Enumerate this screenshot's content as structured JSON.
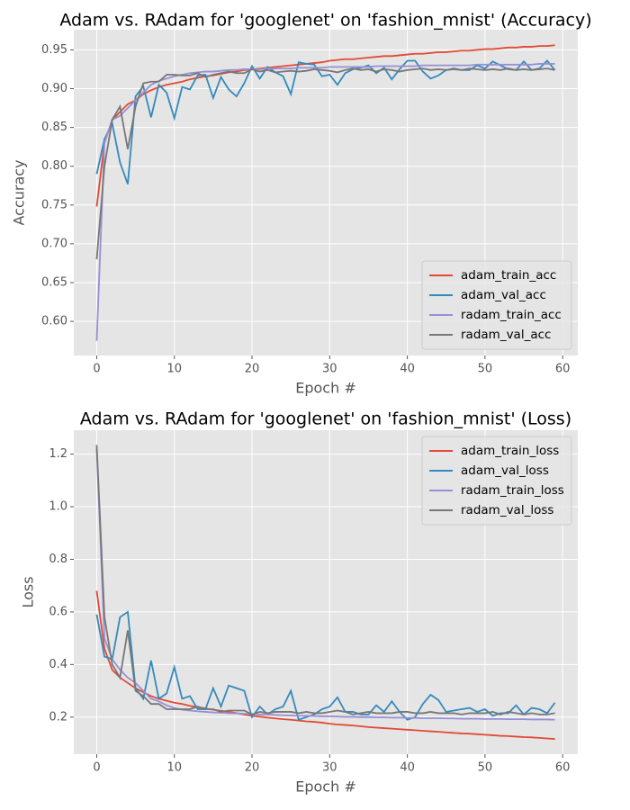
{
  "chart_data": [
    {
      "type": "line",
      "title": "Adam vs. RAdam for 'googlenet' on 'fashion_mnist' (Accuracy)",
      "x_label": "Epoch #",
      "y_label": "Accuracy",
      "x": [
        0,
        1,
        2,
        3,
        4,
        5,
        6,
        7,
        8,
        9,
        10,
        11,
        12,
        13,
        14,
        15,
        16,
        17,
        18,
        19,
        20,
        21,
        22,
        23,
        24,
        25,
        26,
        27,
        28,
        29,
        30,
        31,
        32,
        33,
        34,
        35,
        36,
        37,
        38,
        39,
        40,
        41,
        42,
        43,
        44,
        45,
        46,
        47,
        48,
        49,
        50,
        51,
        52,
        53,
        54,
        55,
        56,
        57,
        58,
        59
      ],
      "xlim": [
        -2.95,
        61.95
      ],
      "xticks": [
        0,
        10,
        20,
        30,
        40,
        50,
        60
      ],
      "ylim": [
        0.556,
        0.976
      ],
      "yticks": [
        {
          "value": 0.6,
          "label": "0.60"
        },
        0.65,
        {
          "value": 0.7,
          "label": "0.70"
        },
        0.75,
        {
          "value": 0.8,
          "label": "0.80"
        },
        0.85,
        {
          "value": 0.9,
          "label": "0.90"
        },
        0.95
      ],
      "grid": true,
      "legend": "lower right",
      "series": [
        {
          "name": "adam_train_acc",
          "color": "#e24a33",
          "values": [
            0.748,
            0.83,
            0.86,
            0.87,
            0.88,
            0.885,
            0.893,
            0.898,
            0.902,
            0.905,
            0.907,
            0.909,
            0.912,
            0.914,
            0.916,
            0.917,
            0.919,
            0.921,
            0.922,
            0.924,
            0.925,
            0.926,
            0.927,
            0.928,
            0.929,
            0.93,
            0.931,
            0.932,
            0.933,
            0.934,
            0.936,
            0.937,
            0.938,
            0.938,
            0.939,
            0.94,
            0.941,
            0.942,
            0.942,
            0.943,
            0.944,
            0.945,
            0.945,
            0.946,
            0.947,
            0.947,
            0.948,
            0.949,
            0.949,
            0.95,
            0.951,
            0.951,
            0.952,
            0.953,
            0.953,
            0.954,
            0.954,
            0.955,
            0.955,
            0.956
          ]
        },
        {
          "name": "adam_val_acc",
          "color": "#348abd",
          "values": [
            0.79,
            0.835,
            0.855,
            0.805,
            0.777,
            0.89,
            0.903,
            0.863,
            0.905,
            0.895,
            0.862,
            0.902,
            0.899,
            0.917,
            0.918,
            0.888,
            0.915,
            0.899,
            0.89,
            0.907,
            0.929,
            0.913,
            0.928,
            0.921,
            0.916,
            0.893,
            0.934,
            0.932,
            0.931,
            0.916,
            0.918,
            0.905,
            0.92,
            0.925,
            0.927,
            0.93,
            0.92,
            0.927,
            0.912,
            0.925,
            0.936,
            0.936,
            0.922,
            0.913,
            0.917,
            0.924,
            0.926,
            0.924,
            0.924,
            0.93,
            0.926,
            0.935,
            0.93,
            0.925,
            0.924,
            0.935,
            0.924,
            0.926,
            0.936,
            0.924
          ]
        },
        {
          "name": "radam_train_acc",
          "color": "#988ed5",
          "values": [
            0.575,
            0.83,
            0.86,
            0.865,
            0.875,
            0.885,
            0.895,
            0.905,
            0.91,
            0.913,
            0.916,
            0.918,
            0.92,
            0.921,
            0.922,
            0.922,
            0.923,
            0.924,
            0.924,
            0.925,
            0.925,
            0.925,
            0.926,
            0.926,
            0.926,
            0.926,
            0.927,
            0.927,
            0.927,
            0.927,
            0.928,
            0.928,
            0.928,
            0.928,
            0.928,
            0.928,
            0.929,
            0.929,
            0.929,
            0.929,
            0.929,
            0.929,
            0.93,
            0.93,
            0.93,
            0.93,
            0.93,
            0.93,
            0.93,
            0.931,
            0.931,
            0.931,
            0.931,
            0.931,
            0.931,
            0.931,
            0.931,
            0.932,
            0.932,
            0.932
          ]
        },
        {
          "name": "radam_val_acc",
          "color": "#777777",
          "values": [
            0.68,
            0.8,
            0.86,
            0.877,
            0.822,
            0.877,
            0.907,
            0.909,
            0.909,
            0.918,
            0.918,
            0.917,
            0.917,
            0.92,
            0.915,
            0.918,
            0.92,
            0.922,
            0.92,
            0.92,
            0.925,
            0.922,
            0.924,
            0.921,
            0.922,
            0.923,
            0.922,
            0.923,
            0.925,
            0.924,
            0.923,
            0.921,
            0.924,
            0.926,
            0.924,
            0.925,
            0.922,
            0.925,
            0.924,
            0.922,
            0.924,
            0.925,
            0.926,
            0.924,
            0.925,
            0.924,
            0.925,
            0.924,
            0.926,
            0.925,
            0.924,
            0.925,
            0.924,
            0.926,
            0.924,
            0.925,
            0.924,
            0.925,
            0.926,
            0.924
          ]
        }
      ]
    },
    {
      "type": "line",
      "title": "Adam vs. RAdam for 'googlenet' on 'fashion_mnist' (Loss)",
      "x_label": "Epoch #",
      "y_label": "Loss",
      "x": [
        0,
        1,
        2,
        3,
        4,
        5,
        6,
        7,
        8,
        9,
        10,
        11,
        12,
        13,
        14,
        15,
        16,
        17,
        18,
        19,
        20,
        21,
        22,
        23,
        24,
        25,
        26,
        27,
        28,
        29,
        30,
        31,
        32,
        33,
        34,
        35,
        36,
        37,
        38,
        39,
        40,
        41,
        42,
        43,
        44,
        45,
        46,
        47,
        48,
        49,
        50,
        51,
        52,
        53,
        54,
        55,
        56,
        57,
        58,
        59
      ],
      "xlim": [
        -2.95,
        61.95
      ],
      "xticks": [
        0,
        10,
        20,
        30,
        40,
        50,
        60
      ],
      "ylim": [
        0.059,
        1.291
      ],
      "yticks": [
        0.2,
        0.4,
        0.6,
        0.8,
        {
          "value": 1,
          "label": "1.0"
        },
        1.2
      ],
      "grid": true,
      "legend": "upper right",
      "series": [
        {
          "name": "adam_train_loss",
          "color": "#e24a33",
          "values": [
            0.68,
            0.46,
            0.38,
            0.35,
            0.33,
            0.31,
            0.295,
            0.28,
            0.27,
            0.262,
            0.255,
            0.25,
            0.243,
            0.238,
            0.233,
            0.228,
            0.224,
            0.22,
            0.215,
            0.21,
            0.205,
            0.202,
            0.198,
            0.195,
            0.192,
            0.19,
            0.187,
            0.184,
            0.182,
            0.179,
            0.175,
            0.172,
            0.17,
            0.168,
            0.165,
            0.162,
            0.16,
            0.158,
            0.156,
            0.154,
            0.152,
            0.15,
            0.148,
            0.146,
            0.144,
            0.142,
            0.14,
            0.138,
            0.137,
            0.135,
            0.133,
            0.131,
            0.129,
            0.128,
            0.126,
            0.124,
            0.123,
            0.121,
            0.119,
            0.117
          ]
        },
        {
          "name": "adam_val_loss",
          "color": "#348abd",
          "values": [
            0.59,
            0.43,
            0.42,
            0.58,
            0.6,
            0.31,
            0.27,
            0.415,
            0.27,
            0.29,
            0.39,
            0.27,
            0.28,
            0.23,
            0.23,
            0.31,
            0.24,
            0.32,
            0.31,
            0.3,
            0.2,
            0.24,
            0.21,
            0.23,
            0.24,
            0.3,
            0.19,
            0.2,
            0.21,
            0.23,
            0.24,
            0.275,
            0.22,
            0.22,
            0.21,
            0.21,
            0.245,
            0.22,
            0.26,
            0.22,
            0.19,
            0.2,
            0.25,
            0.285,
            0.265,
            0.22,
            0.225,
            0.23,
            0.235,
            0.22,
            0.23,
            0.205,
            0.215,
            0.215,
            0.245,
            0.21,
            0.235,
            0.23,
            0.215,
            0.255
          ]
        },
        {
          "name": "radam_train_loss",
          "color": "#988ed5",
          "values": [
            1.22,
            0.5,
            0.42,
            0.38,
            0.35,
            0.33,
            0.3,
            0.27,
            0.26,
            0.245,
            0.235,
            0.228,
            0.225,
            0.222,
            0.22,
            0.218,
            0.217,
            0.215,
            0.214,
            0.213,
            0.212,
            0.21,
            0.21,
            0.208,
            0.207,
            0.206,
            0.205,
            0.205,
            0.204,
            0.203,
            0.203,
            0.202,
            0.201,
            0.201,
            0.2,
            0.2,
            0.199,
            0.199,
            0.198,
            0.198,
            0.197,
            0.197,
            0.196,
            0.196,
            0.196,
            0.195,
            0.195,
            0.194,
            0.194,
            0.194,
            0.193,
            0.193,
            0.193,
            0.192,
            0.192,
            0.192,
            0.191,
            0.191,
            0.191,
            0.19
          ]
        },
        {
          "name": "radam_val_loss",
          "color": "#777777",
          "values": [
            1.235,
            0.58,
            0.4,
            0.35,
            0.53,
            0.3,
            0.28,
            0.25,
            0.25,
            0.23,
            0.23,
            0.23,
            0.23,
            0.24,
            0.23,
            0.23,
            0.22,
            0.225,
            0.225,
            0.225,
            0.21,
            0.22,
            0.215,
            0.22,
            0.22,
            0.22,
            0.215,
            0.22,
            0.215,
            0.215,
            0.22,
            0.225,
            0.22,
            0.21,
            0.215,
            0.22,
            0.215,
            0.215,
            0.215,
            0.22,
            0.22,
            0.215,
            0.215,
            0.22,
            0.215,
            0.215,
            0.215,
            0.21,
            0.215,
            0.215,
            0.215,
            0.22,
            0.21,
            0.22,
            0.215,
            0.21,
            0.215,
            0.21,
            0.21,
            0.215
          ]
        }
      ]
    }
  ]
}
